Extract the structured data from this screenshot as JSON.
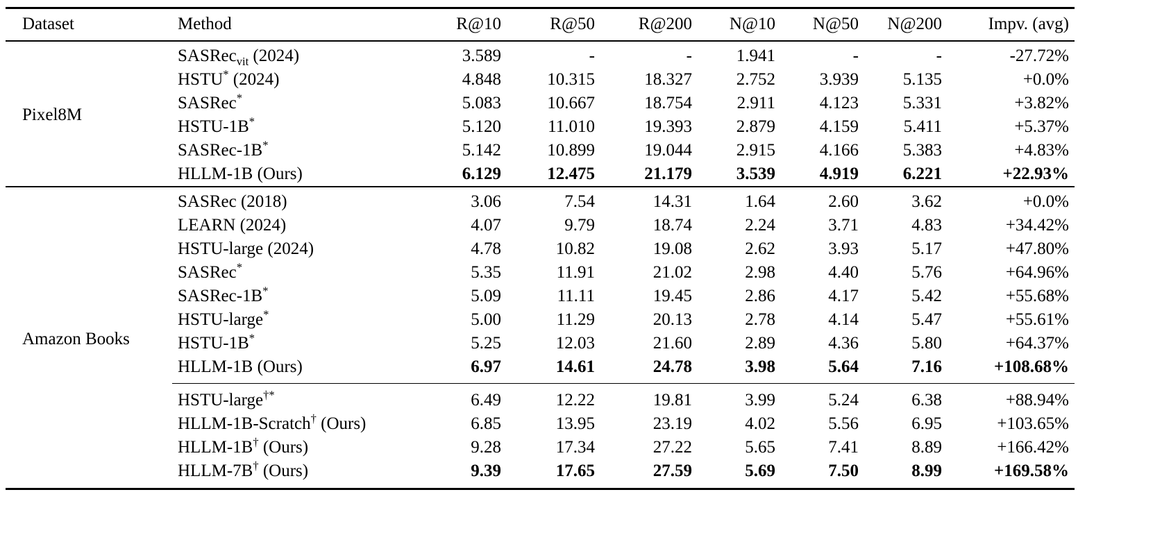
{
  "table": {
    "columns": [
      "Dataset",
      "Method",
      "R@10",
      "R@50",
      "R@200",
      "N@10",
      "N@50",
      "N@200",
      "Impv. (avg)"
    ],
    "groups": [
      {
        "dataset": "Pixel8M",
        "sections": [
          {
            "rows": [
              {
                "method": {
                  "pre": "SASRec",
                  "sub": "vit",
                  "sup": "",
                  "post": " (2024)"
                },
                "values": [
                  "3.589",
                  "-",
                  "-",
                  "1.941",
                  "-",
                  "-",
                  "-27.72%"
                ],
                "bold": false
              },
              {
                "method": {
                  "pre": "HSTU",
                  "sub": "",
                  "sup": "*",
                  "post": " (2024)"
                },
                "values": [
                  "4.848",
                  "10.315",
                  "18.327",
                  "2.752",
                  "3.939",
                  "5.135",
                  "+0.0%"
                ],
                "bold": false
              },
              {
                "method": {
                  "pre": "SASRec",
                  "sub": "",
                  "sup": "*",
                  "post": ""
                },
                "values": [
                  "5.083",
                  "10.667",
                  "18.754",
                  "2.911",
                  "4.123",
                  "5.331",
                  "+3.82%"
                ],
                "bold": false
              },
              {
                "method": {
                  "pre": "HSTU-1B",
                  "sub": "",
                  "sup": "*",
                  "post": ""
                },
                "values": [
                  "5.120",
                  "11.010",
                  "19.393",
                  "2.879",
                  "4.159",
                  "5.411",
                  "+5.37%"
                ],
                "bold": false
              },
              {
                "method": {
                  "pre": "SASRec-1B",
                  "sub": "",
                  "sup": "*",
                  "post": ""
                },
                "values": [
                  "5.142",
                  "10.899",
                  "19.044",
                  "2.915",
                  "4.166",
                  "5.383",
                  "+4.83%"
                ],
                "bold": false
              },
              {
                "method": {
                  "pre": "HLLM-1B (Ours)",
                  "sub": "",
                  "sup": "",
                  "post": ""
                },
                "values": [
                  "6.129",
                  "12.475",
                  "21.179",
                  "3.539",
                  "4.919",
                  "6.221",
                  "+22.93%"
                ],
                "bold": true
              }
            ]
          }
        ]
      },
      {
        "dataset": "Amazon Books",
        "sections": [
          {
            "rows": [
              {
                "method": {
                  "pre": "SASRec (2018)",
                  "sub": "",
                  "sup": "",
                  "post": ""
                },
                "values": [
                  "3.06",
                  "7.54",
                  "14.31",
                  "1.64",
                  "2.60",
                  "3.62",
                  "+0.0%"
                ],
                "bold": false
              },
              {
                "method": {
                  "pre": "LEARN (2024)",
                  "sub": "",
                  "sup": "",
                  "post": ""
                },
                "values": [
                  "4.07",
                  "9.79",
                  "18.74",
                  "2.24",
                  "3.71",
                  "4.83",
                  "+34.42%"
                ],
                "bold": false
              },
              {
                "method": {
                  "pre": "HSTU-large (2024)",
                  "sub": "",
                  "sup": "",
                  "post": ""
                },
                "values": [
                  "4.78",
                  "10.82",
                  "19.08",
                  "2.62",
                  "3.93",
                  "5.17",
                  "+47.80%"
                ],
                "bold": false
              },
              {
                "method": {
                  "pre": "SASRec",
                  "sub": "",
                  "sup": "*",
                  "post": ""
                },
                "values": [
                  "5.35",
                  "11.91",
                  "21.02",
                  "2.98",
                  "4.40",
                  "5.76",
                  "+64.96%"
                ],
                "bold": false
              },
              {
                "method": {
                  "pre": "SASRec-1B",
                  "sub": "",
                  "sup": "*",
                  "post": ""
                },
                "values": [
                  "5.09",
                  "11.11",
                  "19.45",
                  "2.86",
                  "4.17",
                  "5.42",
                  "+55.68%"
                ],
                "bold": false
              },
              {
                "method": {
                  "pre": "HSTU-large",
                  "sub": "",
                  "sup": "*",
                  "post": ""
                },
                "values": [
                  "5.00",
                  "11.29",
                  "20.13",
                  "2.78",
                  "4.14",
                  "5.47",
                  "+55.61%"
                ],
                "bold": false
              },
              {
                "method": {
                  "pre": "HSTU-1B",
                  "sub": "",
                  "sup": "*",
                  "post": ""
                },
                "values": [
                  "5.25",
                  "12.03",
                  "21.60",
                  "2.89",
                  "4.36",
                  "5.80",
                  "+64.37%"
                ],
                "bold": false
              },
              {
                "method": {
                  "pre": "HLLM-1B (Ours)",
                  "sub": "",
                  "sup": "",
                  "post": ""
                },
                "values": [
                  "6.97",
                  "14.61",
                  "24.78",
                  "3.98",
                  "5.64",
                  "7.16",
                  "+108.68%"
                ],
                "bold": true
              }
            ]
          },
          {
            "rows": [
              {
                "method": {
                  "pre": "HSTU-large",
                  "sub": "",
                  "sup": "†*",
                  "post": ""
                },
                "values": [
                  "6.49",
                  "12.22",
                  "19.81",
                  "3.99",
                  "5.24",
                  "6.38",
                  "+88.94%"
                ],
                "bold": false
              },
              {
                "method": {
                  "pre": "HLLM-1B-Scratch",
                  "sub": "",
                  "sup": "†",
                  "post": " (Ours)"
                },
                "values": [
                  "6.85",
                  "13.95",
                  "23.19",
                  "4.02",
                  "5.56",
                  "6.95",
                  "+103.65%"
                ],
                "bold": false
              },
              {
                "method": {
                  "pre": "HLLM-1B",
                  "sub": "",
                  "sup": "†",
                  "post": " (Ours)"
                },
                "values": [
                  "9.28",
                  "17.34",
                  "27.22",
                  "5.65",
                  "7.41",
                  "8.89",
                  "+166.42%"
                ],
                "bold": false
              },
              {
                "method": {
                  "pre": "HLLM-7B",
                  "sub": "",
                  "sup": "†",
                  "post": " (Ours)"
                },
                "values": [
                  "9.39",
                  "17.65",
                  "27.59",
                  "5.69",
                  "7.50",
                  "8.99",
                  "+169.58%"
                ],
                "bold": true
              }
            ]
          }
        ]
      }
    ]
  }
}
